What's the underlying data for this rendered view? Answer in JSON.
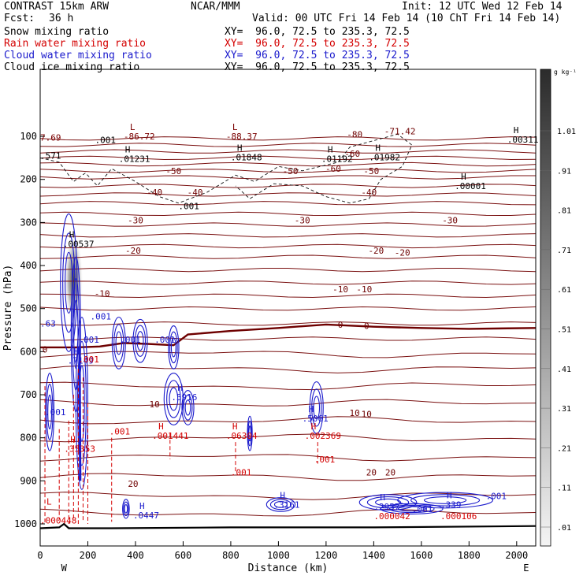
{
  "header": {
    "model": "CONTRAST 15km ARW",
    "source": "NCAR/MMM",
    "init": "Init: 12 UTC Wed 12 Feb 14",
    "fcst_label": "Fcst:",
    "fcst_value": "36 h",
    "valid": "Valid: 00 UTC Fri 14 Feb 14 (10 ChT Fri 14 Feb 14)",
    "fields": [
      {
        "name": "Snow mixing ratio",
        "xy": "XY=  96.0, 72.5 to 235.3, 72.5",
        "color": "#000000"
      },
      {
        "name": "Rain water mixing ratio",
        "xy": "XY=  96.0, 72.5 to 235.3, 72.5",
        "color": "#d40000"
      },
      {
        "name": "Cloud water mixing ratio",
        "xy": "XY=  96.0, 72.5 to 235.3, 72.5",
        "color": "#1a1acc"
      },
      {
        "name": "Cloud ice mixing ratio",
        "xy": "XY=  96.0, 72.5 to 235.3, 72.5",
        "color": "#000000"
      }
    ]
  },
  "chart_data": {
    "type": "cross-section",
    "xlabel": "Distance (km)",
    "ylabel": "Pressure (hPa)",
    "xlim": [
      0,
      2080
    ],
    "ylim": [
      1040,
      50
    ],
    "x_ticks": [
      0,
      200,
      400,
      600,
      800,
      1000,
      1200,
      1400,
      1600,
      1800,
      2000
    ],
    "y_ticks": [
      100,
      200,
      300,
      400,
      500,
      600,
      700,
      800,
      900,
      1000
    ],
    "x_end_labels": {
      "left": "W",
      "right": "E"
    },
    "colorbar": {
      "unit": "g kg⁻¹",
      "labels": [
        "1.01",
        ".91",
        ".81",
        ".71",
        ".61",
        ".51",
        ".41",
        ".31",
        ".21",
        ".11",
        ".01"
      ]
    },
    "temperature_labels": [
      {
        "text": "-80",
        "x": 1320,
        "p": 95
      },
      {
        "text": "-71.42",
        "x": 1510,
        "p": 88
      },
      {
        "text": "-60",
        "x": 1310,
        "p": 140
      },
      {
        "text": "-60",
        "x": 1230,
        "p": 175
      },
      {
        "text": "-50",
        "x": 560,
        "p": 180
      },
      {
        "text": "-50",
        "x": 1050,
        "p": 180
      },
      {
        "text": "-50",
        "x": 1390,
        "p": 180
      },
      {
        "text": "-40",
        "x": 480,
        "p": 230
      },
      {
        "text": "-40",
        "x": 650,
        "p": 230
      },
      {
        "text": "-40",
        "x": 1380,
        "p": 230
      },
      {
        "text": "-30",
        "x": 400,
        "p": 295
      },
      {
        "text": "-30",
        "x": 1100,
        "p": 295
      },
      {
        "text": "-30",
        "x": 1720,
        "p": 295
      },
      {
        "text": "-20",
        "x": 390,
        "p": 365
      },
      {
        "text": "-20",
        "x": 1410,
        "p": 365
      },
      {
        "text": "-20",
        "x": 1520,
        "p": 370
      },
      {
        "text": "-10",
        "x": 1260,
        "p": 455
      },
      {
        "text": "-10",
        "x": 1360,
        "p": 455
      },
      {
        "text": "-10",
        "x": 260,
        "p": 465
      },
      {
        "text": "0",
        "x": 1260,
        "p": 537
      },
      {
        "text": "0",
        "x": 1370,
        "p": 540
      },
      {
        "text": "10",
        "x": 480,
        "p": 722
      },
      {
        "text": "10",
        "x": 1320,
        "p": 742
      },
      {
        "text": "10",
        "x": 1370,
        "p": 745
      },
      {
        "text": "20",
        "x": 1390,
        "p": 880
      },
      {
        "text": "20",
        "x": 1470,
        "p": 880
      },
      {
        "text": "20",
        "x": 390,
        "p": 907
      },
      {
        "text": "0",
        "x": 20,
        "p": 595
      }
    ],
    "extrema": [
      {
        "kind": "L",
        "value": "-86.72",
        "x": 350,
        "p": 100,
        "color": "#7a0000"
      },
      {
        "kind": "L",
        "value": "-88.37",
        "x": 780,
        "p": 100,
        "color": "#7a0000"
      },
      {
        "kind": "",
        "value": "7.69",
        "x": 0,
        "p": 103,
        "color": "#7a0000"
      },
      {
        "kind": "",
        "value": ".001",
        "x": 230,
        "p": 108,
        "color": "#000000"
      },
      {
        "kind": "H",
        "value": ".00311",
        "x": 1960,
        "p": 107,
        "color": "#000000"
      },
      {
        "kind": "H",
        "value": ".01231",
        "x": 330,
        "p": 152,
        "color": "#000000"
      },
      {
        "kind": "H",
        "value": ".01848",
        "x": 800,
        "p": 148,
        "color": "#000000"
      },
      {
        "kind": "H",
        "value": ".01192",
        "x": 1180,
        "p": 152,
        "color": "#000000"
      },
      {
        "kind": "H",
        "value": ".01982",
        "x": 1380,
        "p": 148,
        "color": "#000000"
      },
      {
        "kind": "",
        "value": ".571",
        "x": 0,
        "p": 145,
        "color": "#000000"
      },
      {
        "kind": "H",
        "value": ".00001",
        "x": 1740,
        "p": 215,
        "color": "#000000"
      },
      {
        "kind": "",
        "value": ".001",
        "x": 580,
        "p": 262,
        "color": "#000000"
      },
      {
        "kind": "H",
        "value": ".00537",
        "x": 95,
        "p": 350,
        "color": "#000000"
      },
      {
        "kind": "",
        "value": ".63",
        "x": 0,
        "p": 534,
        "color": "#1a1acc"
      },
      {
        "kind": "",
        "value": ".001",
        "x": 210,
        "p": 518,
        "color": "#1a1acc"
      },
      {
        "kind": "",
        "value": ".001",
        "x": 160,
        "p": 572,
        "color": "#1a1acc"
      },
      {
        "kind": "",
        "value": ".001",
        "x": 335,
        "p": 572,
        "color": "#1a1acc"
      },
      {
        "kind": "",
        "value": ".001",
        "x": 480,
        "p": 572,
        "color": "#1a1acc"
      },
      {
        "kind": "H",
        "value": ".7149",
        "x": 115,
        "p": 620,
        "color": "#1a1acc"
      },
      {
        "kind": "",
        "value": ".001",
        "x": 160,
        "p": 618,
        "color": "#d40000"
      },
      {
        "kind": "H",
        "value": ".5916",
        "x": 550,
        "p": 705,
        "color": "#1a1acc"
      },
      {
        "kind": "",
        "value": ".001",
        "x": 20,
        "p": 740,
        "color": "#1a1acc"
      },
      {
        "kind": "H",
        "value": ".5061",
        "x": 1100,
        "p": 755,
        "color": "#1a1acc"
      },
      {
        "kind": "H",
        "value": ".001441",
        "x": 470,
        "p": 795,
        "color": "#d40000"
      },
      {
        "kind": "H",
        "value": ".06304",
        "x": 780,
        "p": 795,
        "color": "#d40000"
      },
      {
        "kind": "H",
        "value": ".002369",
        "x": 1110,
        "p": 795,
        "color": "#d40000"
      },
      {
        "kind": "",
        "value": ".001",
        "x": 290,
        "p": 785,
        "color": "#d40000"
      },
      {
        "kind": "H",
        "value": ".35353",
        "x": 100,
        "p": 825,
        "color": "#d40000"
      },
      {
        "kind": "",
        "value": ".001",
        "x": 1150,
        "p": 850,
        "color": "#d40000"
      },
      {
        "kind": "",
        "value": ".001",
        "x": 800,
        "p": 880,
        "color": "#d40000"
      },
      {
        "kind": "H",
        "value": ".3161",
        "x": 980,
        "p": 955,
        "color": "#1a1acc"
      },
      {
        "kind": "H",
        "value": ".0447",
        "x": 390,
        "p": 980,
        "color": "#1a1acc"
      },
      {
        "kind": "H",
        "value": ".2957",
        "x": 1400,
        "p": 960,
        "color": "#1a1acc"
      },
      {
        "kind": "H",
        "value": ".339",
        "x": 1680,
        "p": 955,
        "color": "#1a1acc"
      },
      {
        "kind": "",
        "value": ".001",
        "x": 1870,
        "p": 935,
        "color": "#1a1acc"
      },
      {
        "kind": "",
        "value": ".001",
        "x": 1560,
        "p": 965,
        "color": "#1a1acc"
      },
      {
        "kind": "",
        "value": ".000042",
        "x": 1400,
        "p": 982,
        "color": "#d40000"
      },
      {
        "kind": "",
        "value": ".000106",
        "x": 1680,
        "p": 982,
        "color": "#d40000"
      },
      {
        "kind": "",
        "value": ".000448",
        "x": 0,
        "p": 992,
        "color": "#d40000"
      },
      {
        "kind": "L",
        "value": "",
        "x": 0,
        "p": 970,
        "color": "#d40000"
      }
    ]
  }
}
